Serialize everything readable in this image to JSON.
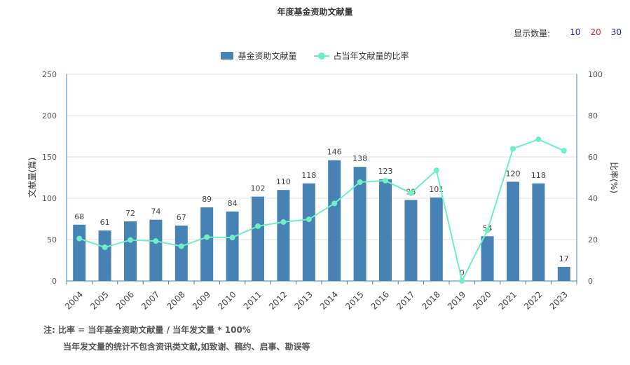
{
  "page": {
    "title": "年度基金资助文献量"
  },
  "count_selector": {
    "label": "显示数量:",
    "options": [
      {
        "text": "10",
        "color": "#2222bb"
      },
      {
        "text": "20",
        "color": "#dd2222"
      },
      {
        "text": "30",
        "color": "#2222bb"
      }
    ]
  },
  "notes": {
    "line1": "注:  比率 = 当年基金资助文献量 / 当年发文量 * 100%",
    "line2": "当年发文量的统计不包含资讯类文献,如致谢、稿约、启事、勘误等"
  },
  "chart_data": {
    "type": "bar",
    "title": "年度基金资助文献量",
    "categories": [
      "2004",
      "2005",
      "2006",
      "2007",
      "2008",
      "2009",
      "2010",
      "2011",
      "2012",
      "2013",
      "2014",
      "2015",
      "2016",
      "2017",
      "2018",
      "2019",
      "2020",
      "2021",
      "2022",
      "2023"
    ],
    "series": [
      {
        "name": "基金资助文献量",
        "type": "bar",
        "axis": "left",
        "color": "#4682b4",
        "values": [
          68,
          61,
          72,
          74,
          67,
          89,
          84,
          102,
          110,
          118,
          146,
          138,
          123,
          98,
          101,
          0,
          54,
          120,
          118,
          17
        ]
      },
      {
        "name": "占当年文献量的比率",
        "type": "line",
        "axis": "right",
        "color": "#6ef0c4",
        "values": [
          20.5,
          16.3,
          19.8,
          19.3,
          16.8,
          21.2,
          21.0,
          26.5,
          28.5,
          29.8,
          37.5,
          47.8,
          48.5,
          42.5,
          53.5,
          0,
          24.5,
          64.0,
          68.5,
          63.0
        ]
      }
    ],
    "ylabel": "文献量(篇)",
    "y2label": "比率(%)",
    "ylim": [
      0,
      250
    ],
    "yticks": [
      0,
      50,
      100,
      150,
      200,
      250
    ],
    "y2lim": [
      0,
      100
    ],
    "y2ticks": [
      0,
      20,
      40,
      60,
      80,
      100
    ],
    "grid": true,
    "legend_position": "top-center",
    "show_bar_labels": true
  }
}
